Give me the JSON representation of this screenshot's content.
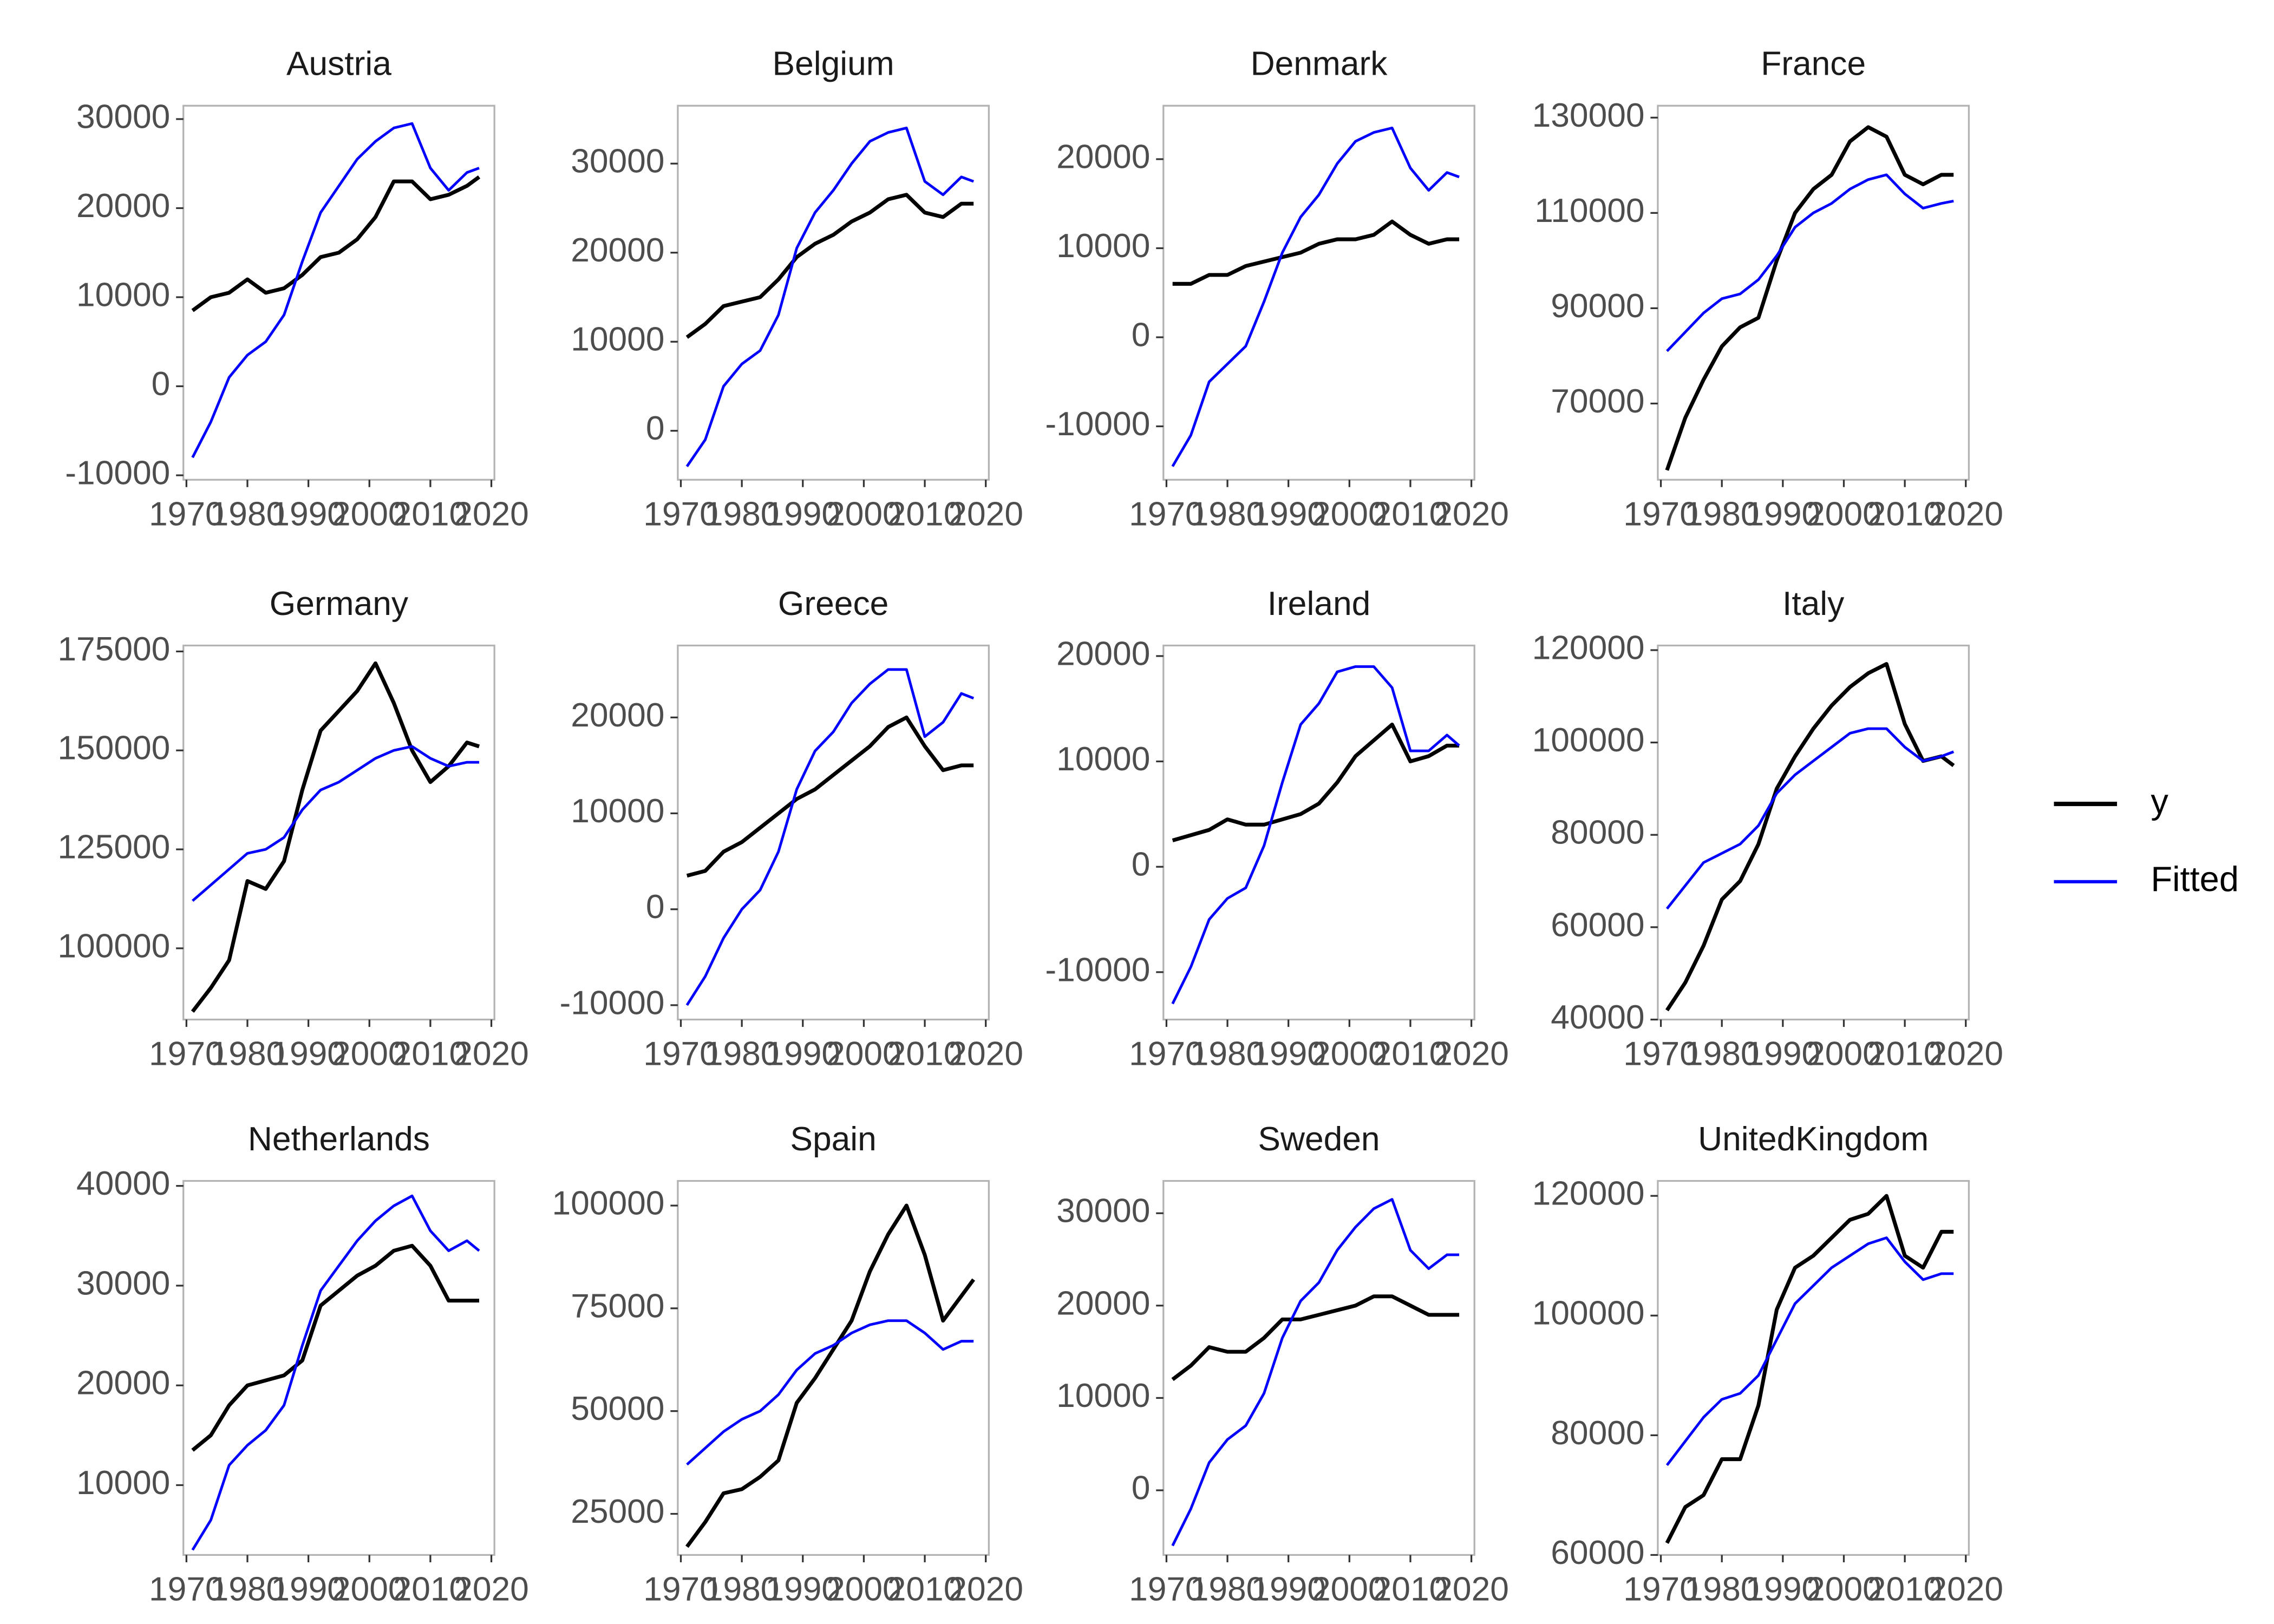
{
  "chart_data": [
    {
      "type": "line",
      "title": "Austria",
      "x": [
        1971,
        1974,
        1977,
        1980,
        1983,
        1986,
        1989,
        1992,
        1995,
        1998,
        2001,
        2004,
        2007,
        2010,
        2013,
        2016,
        2018
      ],
      "xlim": [
        1969.5,
        2020.5
      ],
      "xticks": [
        1970,
        1980,
        1990,
        2000,
        2010,
        2020
      ],
      "ylim": [
        -10500,
        31500
      ],
      "yticks": [
        -10000,
        0,
        10000,
        20000,
        30000
      ],
      "series": [
        {
          "name": "y",
          "color": "#000000",
          "values": [
            8500,
            10000,
            10500,
            12000,
            10500,
            11000,
            12500,
            14500,
            15000,
            16500,
            19000,
            23000,
            23000,
            21000,
            21500,
            22500,
            23500
          ]
        },
        {
          "name": "Fitted",
          "color": "#0000ff",
          "values": [
            -8000,
            -4000,
            1000,
            3500,
            5000,
            8000,
            14000,
            19500,
            22500,
            25500,
            27500,
            29000,
            29500,
            24500,
            22000,
            24000,
            24500
          ]
        }
      ]
    },
    {
      "type": "line",
      "title": "Belgium",
      "x": [
        1971,
        1974,
        1977,
        1980,
        1983,
        1986,
        1989,
        1992,
        1995,
        1998,
        2001,
        2004,
        2007,
        2010,
        2013,
        2016,
        2018
      ],
      "xlim": [
        1969.5,
        2020.5
      ],
      "xticks": [
        1970,
        1980,
        1990,
        2000,
        2010,
        2020
      ],
      "ylim": [
        -5500,
        36500
      ],
      "yticks": [
        0,
        10000,
        20000,
        30000
      ],
      "series": [
        {
          "name": "y",
          "color": "#000000",
          "values": [
            10500,
            12000,
            14000,
            14500,
            15000,
            17000,
            19500,
            21000,
            22000,
            23500,
            24500,
            26000,
            26500,
            24500,
            24000,
            25500,
            25500
          ]
        },
        {
          "name": "Fitted",
          "color": "#0000ff",
          "values": [
            -4000,
            -1000,
            5000,
            7500,
            9000,
            13000,
            20500,
            24500,
            27000,
            30000,
            32500,
            33500,
            34000,
            28000,
            26500,
            28500,
            28000
          ]
        }
      ]
    },
    {
      "type": "line",
      "title": "Denmark",
      "x": [
        1971,
        1974,
        1977,
        1980,
        1983,
        1986,
        1989,
        1992,
        1995,
        1998,
        2001,
        2004,
        2007,
        2010,
        2013,
        2016,
        2018
      ],
      "xlim": [
        1969.5,
        2020.5
      ],
      "xticks": [
        1970,
        1980,
        1990,
        2000,
        2010,
        2020
      ],
      "ylim": [
        -16000,
        26000
      ],
      "yticks": [
        -10000,
        0,
        10000,
        20000
      ],
      "series": [
        {
          "name": "y",
          "color": "#000000",
          "values": [
            6000,
            6000,
            7000,
            7000,
            8000,
            8500,
            9000,
            9500,
            10500,
            11000,
            11000,
            11500,
            13000,
            11500,
            10500,
            11000,
            11000
          ]
        },
        {
          "name": "Fitted",
          "color": "#0000ff",
          "values": [
            -14500,
            -11000,
            -5000,
            -3000,
            -1000,
            4000,
            9500,
            13500,
            16000,
            19500,
            22000,
            23000,
            23500,
            19000,
            16500,
            18500,
            18000
          ]
        }
      ]
    },
    {
      "type": "line",
      "title": "France",
      "x": [
        1971,
        1974,
        1977,
        1980,
        1983,
        1986,
        1989,
        1992,
        1995,
        1998,
        2001,
        2004,
        2007,
        2010,
        2013,
        2016,
        2018
      ],
      "xlim": [
        1969.5,
        2020.5
      ],
      "xticks": [
        1970,
        1980,
        1990,
        2000,
        2010,
        2020
      ],
      "ylim": [
        54000,
        132500
      ],
      "yticks": [
        70000,
        90000,
        110000,
        130000
      ],
      "series": [
        {
          "name": "y",
          "color": "#000000",
          "values": [
            56000,
            67000,
            75000,
            82000,
            86000,
            88000,
            100000,
            110000,
            115000,
            118000,
            125000,
            128000,
            126000,
            118000,
            116000,
            118000,
            118000
          ]
        },
        {
          "name": "Fitted",
          "color": "#0000ff",
          "values": [
            81000,
            85000,
            89000,
            92000,
            93000,
            96000,
            101000,
            107000,
            110000,
            112000,
            115000,
            117000,
            118000,
            114000,
            111000,
            112000,
            112500
          ]
        }
      ]
    },
    {
      "type": "line",
      "title": "Germany",
      "x": [
        1971,
        1974,
        1977,
        1980,
        1983,
        1986,
        1989,
        1992,
        1995,
        1998,
        2001,
        2004,
        2007,
        2010,
        2013,
        2016,
        2018
      ],
      "xlim": [
        1969.5,
        2020.5
      ],
      "xticks": [
        1970,
        1980,
        1990,
        2000,
        2010,
        2020
      ],
      "ylim": [
        82000,
        176500
      ],
      "yticks": [
        100000,
        125000,
        150000,
        175000
      ],
      "series": [
        {
          "name": "y",
          "color": "#000000",
          "values": [
            84000,
            90000,
            97000,
            117000,
            115000,
            122000,
            140000,
            155000,
            160000,
            165000,
            172000,
            162000,
            150000,
            142000,
            146000,
            152000,
            151000
          ]
        },
        {
          "name": "Fitted",
          "color": "#0000ff",
          "values": [
            112000,
            116000,
            120000,
            124000,
            125000,
            128000,
            135000,
            140000,
            142000,
            145000,
            148000,
            150000,
            151000,
            148000,
            146000,
            147000,
            147000
          ]
        }
      ]
    },
    {
      "type": "line",
      "title": "Greece",
      "x": [
        1971,
        1974,
        1977,
        1980,
        1983,
        1986,
        1989,
        1992,
        1995,
        1998,
        2001,
        2004,
        2007,
        2010,
        2013,
        2016,
        2018
      ],
      "xlim": [
        1969.5,
        2020.5
      ],
      "xticks": [
        1970,
        1980,
        1990,
        2000,
        2010,
        2020
      ],
      "ylim": [
        -11500,
        27500
      ],
      "yticks": [
        -10000,
        0,
        10000,
        20000
      ],
      "series": [
        {
          "name": "y",
          "color": "#000000",
          "values": [
            3500,
            4000,
            6000,
            7000,
            8500,
            10000,
            11500,
            12500,
            14000,
            15500,
            17000,
            19000,
            20000,
            17000,
            14500,
            15000,
            15000
          ]
        },
        {
          "name": "Fitted",
          "color": "#0000ff",
          "values": [
            -10000,
            -7000,
            -3000,
            0,
            2000,
            6000,
            12500,
            16500,
            18500,
            21500,
            23500,
            25000,
            25000,
            18000,
            19500,
            22500,
            22000
          ]
        }
      ]
    },
    {
      "type": "line",
      "title": "Ireland",
      "x": [
        1971,
        1974,
        1977,
        1980,
        1983,
        1986,
        1989,
        1992,
        1995,
        1998,
        2001,
        2004,
        2007,
        2010,
        2013,
        2016,
        2018
      ],
      "xlim": [
        1969.5,
        2020.5
      ],
      "xticks": [
        1970,
        1980,
        1990,
        2000,
        2010,
        2020
      ],
      "ylim": [
        -14500,
        21000
      ],
      "yticks": [
        -10000,
        0,
        10000,
        20000
      ],
      "series": [
        {
          "name": "y",
          "color": "#000000",
          "values": [
            2500,
            3000,
            3500,
            4500,
            4000,
            4000,
            4500,
            5000,
            6000,
            8000,
            10500,
            12000,
            13500,
            10000,
            10500,
            11500,
            11500
          ]
        },
        {
          "name": "Fitted",
          "color": "#0000ff",
          "values": [
            -13000,
            -9500,
            -5000,
            -3000,
            -2000,
            2000,
            8000,
            13500,
            15500,
            18500,
            19000,
            19000,
            17000,
            11000,
            11000,
            12500,
            11500
          ]
        }
      ]
    },
    {
      "type": "line",
      "title": "Italy",
      "x": [
        1971,
        1974,
        1977,
        1980,
        1983,
        1986,
        1989,
        1992,
        1995,
        1998,
        2001,
        2004,
        2007,
        2010,
        2013,
        2016,
        2018
      ],
      "xlim": [
        1969.5,
        2020.5
      ],
      "xticks": [
        1970,
        1980,
        1990,
        2000,
        2010,
        2020
      ],
      "ylim": [
        40000,
        121000
      ],
      "yticks": [
        40000,
        60000,
        80000,
        100000,
        120000
      ],
      "series": [
        {
          "name": "y",
          "color": "#000000",
          "values": [
            42000,
            48000,
            56000,
            66000,
            70000,
            78000,
            90000,
            97000,
            103000,
            108000,
            112000,
            115000,
            117000,
            104000,
            96000,
            97000,
            95000
          ]
        },
        {
          "name": "Fitted",
          "color": "#0000ff",
          "values": [
            64000,
            69000,
            74000,
            76000,
            78000,
            82000,
            89000,
            93000,
            96000,
            99000,
            102000,
            103000,
            103000,
            99000,
            96000,
            97000,
            98000
          ]
        }
      ]
    },
    {
      "type": "line",
      "title": "Netherlands",
      "x": [
        1971,
        1974,
        1977,
        1980,
        1983,
        1986,
        1989,
        1992,
        1995,
        1998,
        2001,
        2004,
        2007,
        2010,
        2013,
        2016,
        2018
      ],
      "xlim": [
        1969.5,
        2020.5
      ],
      "xticks": [
        1970,
        1980,
        1990,
        2000,
        2010,
        2020
      ],
      "ylim": [
        3000,
        40500
      ],
      "yticks": [
        10000,
        20000,
        30000,
        40000
      ],
      "series": [
        {
          "name": "y",
          "color": "#000000",
          "values": [
            13500,
            15000,
            18000,
            20000,
            20500,
            21000,
            22500,
            28000,
            29500,
            31000,
            32000,
            33500,
            34000,
            32000,
            28500,
            28500,
            28500
          ]
        },
        {
          "name": "Fitted",
          "color": "#0000ff",
          "values": [
            3500,
            6500,
            12000,
            14000,
            15500,
            18000,
            24000,
            29500,
            32000,
            34500,
            36500,
            38000,
            39000,
            35500,
            33500,
            34500,
            33500
          ]
        }
      ]
    },
    {
      "type": "line",
      "title": "Spain",
      "x": [
        1971,
        1974,
        1977,
        1980,
        1983,
        1986,
        1989,
        1992,
        1995,
        1998,
        2001,
        2004,
        2007,
        2010,
        2013,
        2016,
        2018
      ],
      "xlim": [
        1969.5,
        2020.5
      ],
      "xticks": [
        1970,
        1980,
        1990,
        2000,
        2010,
        2020
      ],
      "ylim": [
        15000,
        106000
      ],
      "yticks": [
        25000,
        50000,
        75000,
        100000
      ],
      "series": [
        {
          "name": "y",
          "color": "#000000",
          "values": [
            17000,
            23000,
            30000,
            31000,
            34000,
            38000,
            52000,
            58000,
            65000,
            72000,
            84000,
            93000,
            100000,
            88000,
            72000,
            78000,
            82000
          ]
        },
        {
          "name": "Fitted",
          "color": "#0000ff",
          "values": [
            37000,
            41000,
            45000,
            48000,
            50000,
            54000,
            60000,
            64000,
            66000,
            69000,
            71000,
            72000,
            72000,
            69000,
            65000,
            67000,
            67000
          ]
        }
      ]
    },
    {
      "type": "line",
      "title": "Sweden",
      "x": [
        1971,
        1974,
        1977,
        1980,
        1983,
        1986,
        1989,
        1992,
        1995,
        1998,
        2001,
        2004,
        2007,
        2010,
        2013,
        2016,
        2018
      ],
      "xlim": [
        1969.5,
        2020.5
      ],
      "xticks": [
        1970,
        1980,
        1990,
        2000,
        2010,
        2020
      ],
      "ylim": [
        -7000,
        33500
      ],
      "yticks": [
        0,
        10000,
        20000,
        30000
      ],
      "series": [
        {
          "name": "y",
          "color": "#000000",
          "values": [
            12000,
            13500,
            15500,
            15000,
            15000,
            16500,
            18500,
            18500,
            19000,
            19500,
            20000,
            21000,
            21000,
            20000,
            19000,
            19000,
            19000
          ]
        },
        {
          "name": "Fitted",
          "color": "#0000ff",
          "values": [
            -6000,
            -2000,
            3000,
            5500,
            7000,
            10500,
            16500,
            20500,
            22500,
            26000,
            28500,
            30500,
            31500,
            26000,
            24000,
            25500,
            25500
          ]
        }
      ]
    },
    {
      "type": "line",
      "title": "UnitedKingdom",
      "x": [
        1971,
        1974,
        1977,
        1980,
        1983,
        1986,
        1989,
        1992,
        1995,
        1998,
        2001,
        2004,
        2007,
        2010,
        2013,
        2016,
        2018
      ],
      "xlim": [
        1969.5,
        2020.5
      ],
      "xticks": [
        1970,
        1980,
        1990,
        2000,
        2010,
        2020
      ],
      "ylim": [
        60000,
        122500
      ],
      "yticks": [
        60000,
        80000,
        100000,
        120000
      ],
      "series": [
        {
          "name": "y",
          "color": "#000000",
          "values": [
            62000,
            68000,
            70000,
            76000,
            76000,
            85000,
            101000,
            108000,
            110000,
            113000,
            116000,
            117000,
            120000,
            110000,
            108000,
            114000,
            114000
          ]
        },
        {
          "name": "Fitted",
          "color": "#0000ff",
          "values": [
            75000,
            79000,
            83000,
            86000,
            87000,
            90000,
            96000,
            102000,
            105000,
            108000,
            110000,
            112000,
            113000,
            109000,
            106000,
            107000,
            107000
          ]
        }
      ]
    }
  ]
}
